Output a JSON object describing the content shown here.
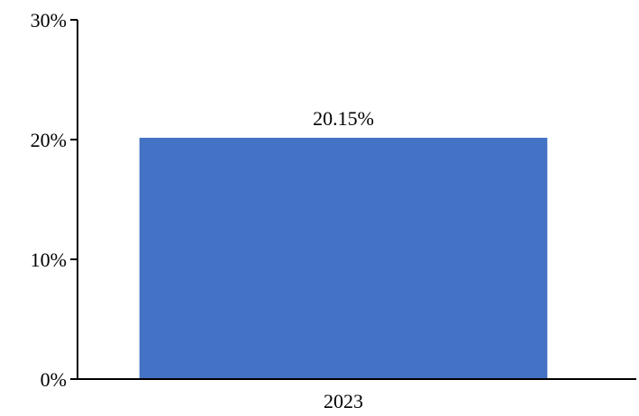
{
  "chart_data": {
    "type": "bar",
    "categories": [
      "2023"
    ],
    "values": [
      20.15
    ],
    "data_labels": [
      "20.15%"
    ],
    "y_ticks": [
      {
        "value": 0,
        "label": "0%"
      },
      {
        "value": 10,
        "label": "10%"
      },
      {
        "value": 20,
        "label": "20%"
      },
      {
        "value": 30,
        "label": "30%"
      }
    ],
    "ylim": [
      0,
      30
    ],
    "title": "",
    "xlabel": "",
    "ylabel": "",
    "grid": false,
    "legend": "none",
    "colors": {
      "bar": "#4472C4",
      "axis": "#000000"
    }
  }
}
